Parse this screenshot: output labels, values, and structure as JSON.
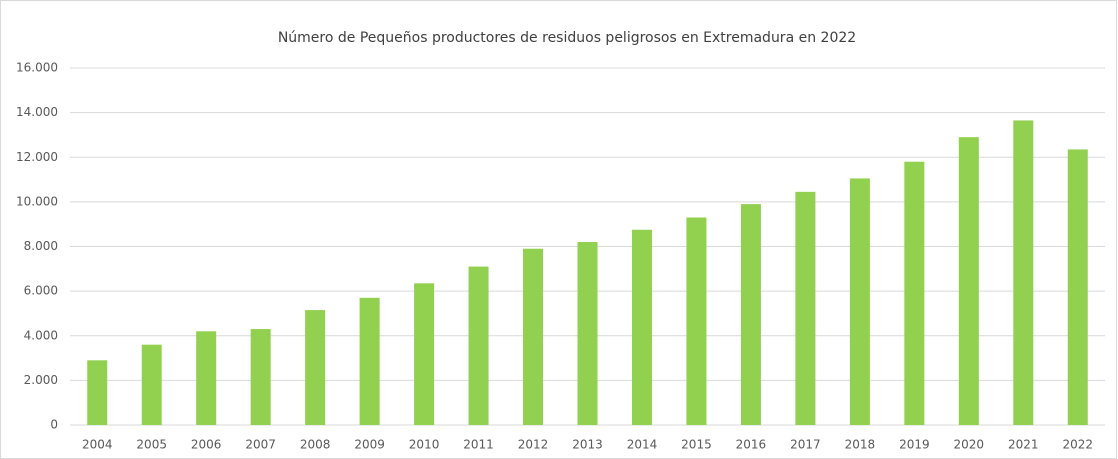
{
  "chart_data": {
    "type": "bar",
    "title": "Número de Pequeños productores de residuos peligrosos en Extremadura en 2022",
    "categories": [
      "2004",
      "2005",
      "2006",
      "2007",
      "2008",
      "2009",
      "2010",
      "2011",
      "2012",
      "2013",
      "2014",
      "2015",
      "2016",
      "2017",
      "2018",
      "2019",
      "2020",
      "2021",
      "2022"
    ],
    "values": [
      2900,
      3600,
      4200,
      4300,
      5150,
      5700,
      6350,
      7100,
      7900,
      8200,
      8750,
      9300,
      9900,
      10450,
      11050,
      11800,
      12900,
      13650,
      12350
    ],
    "color": "#92d050",
    "ylim": [
      0,
      16000
    ],
    "yticks": [
      0,
      {
        "value": 2000,
        "label": "2.000"
      },
      {
        "value": 4000,
        "label": "4.000"
      },
      {
        "value": 6000,
        "label": "6.000"
      },
      {
        "value": 8000,
        "label": "8.000"
      },
      {
        "value": 10000,
        "label": "10.000"
      },
      {
        "value": 12000,
        "label": "12.000"
      },
      {
        "value": 14000,
        "label": "14.000"
      },
      {
        "value": 16000,
        "label": "16.000"
      }
    ],
    "grid": true
  }
}
